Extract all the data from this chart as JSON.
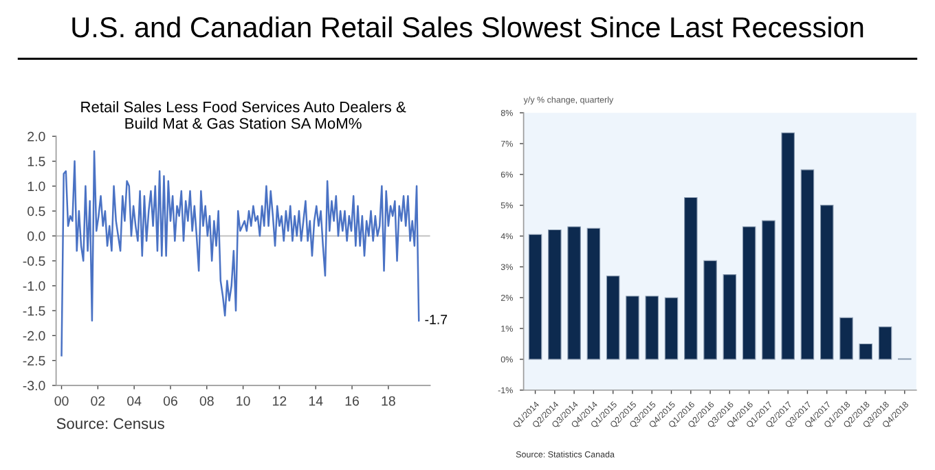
{
  "chart_data": [
    {
      "type": "line",
      "title": "U.S. and Canadian Retail Sales Slowest Since Last Recession",
      "subtitle": "Retail Sales Less Food Services Auto Dealers &\nBuild Mat & Gas Station SA MoM%",
      "x": [
        2000,
        2000.12,
        2000.24,
        2000.36,
        2000.48,
        2000.6,
        2000.72,
        2000.84,
        2000.96,
        2001.08,
        2001.2,
        2001.32,
        2001.44,
        2001.56,
        2001.68,
        2001.8,
        2001.92,
        2002.04,
        2002.16,
        2002.28,
        2002.4,
        2002.52,
        2002.64,
        2002.76,
        2002.88,
        2003,
        2003.12,
        2003.24,
        2003.36,
        2003.48,
        2003.6,
        2003.72,
        2003.84,
        2003.96,
        2004.08,
        2004.2,
        2004.32,
        2004.44,
        2004.56,
        2004.68,
        2004.8,
        2004.92,
        2005.04,
        2005.16,
        2005.28,
        2005.4,
        2005.52,
        2005.64,
        2005.76,
        2005.88,
        2006,
        2006.12,
        2006.24,
        2006.36,
        2006.48,
        2006.6,
        2006.72,
        2006.84,
        2006.96,
        2007.08,
        2007.2,
        2007.32,
        2007.44,
        2007.56,
        2007.68,
        2007.8,
        2007.92,
        2008.04,
        2008.16,
        2008.28,
        2008.4,
        2008.52,
        2008.64,
        2008.76,
        2008.88,
        2009,
        2009.12,
        2009.24,
        2009.36,
        2009.48,
        2009.6,
        2009.72,
        2009.84,
        2009.96,
        2010.08,
        2010.2,
        2010.32,
        2010.44,
        2010.56,
        2010.68,
        2010.8,
        2010.92,
        2011.04,
        2011.16,
        2011.28,
        2011.4,
        2011.52,
        2011.64,
        2011.76,
        2011.88,
        2012,
        2012.12,
        2012.24,
        2012.36,
        2012.48,
        2012.6,
        2012.72,
        2012.84,
        2012.96,
        2013.08,
        2013.2,
        2013.32,
        2013.44,
        2013.56,
        2013.68,
        2013.8,
        2013.92,
        2014.04,
        2014.16,
        2014.28,
        2014.4,
        2014.52,
        2014.64,
        2014.76,
        2014.88,
        2015,
        2015.12,
        2015.24,
        2015.36,
        2015.48,
        2015.6,
        2015.72,
        2015.84,
        2015.96,
        2016.08,
        2016.2,
        2016.32,
        2016.44,
        2016.56,
        2016.68,
        2016.8,
        2016.92,
        2017.04,
        2017.16,
        2017.28,
        2017.4,
        2017.52,
        2017.64,
        2017.76,
        2017.88,
        2018,
        2018.12,
        2018.24,
        2018.36,
        2018.48,
        2018.6,
        2018.72,
        2018.84,
        2018.96,
        2019.08,
        2019.2,
        2019.32,
        2019.44,
        2019.56,
        2019.68
      ],
      "series": [
        {
          "color": "#4a72c4",
          "values": [
            -2.4,
            1.25,
            1.3,
            0.2,
            0.4,
            0.3,
            1.5,
            -0.3,
            0.5,
            -0.2,
            -0.5,
            1.0,
            -0.3,
            0.7,
            -1.7,
            1.7,
            0.1,
            0.4,
            0.8,
            0.2,
            0.5,
            -0.2,
            0.2,
            -0.3,
            1.0,
            0.3,
            0.0,
            -0.3,
            0.8,
            0.3,
            1.1,
            1.0,
            0.0,
            0.6,
            0.2,
            -0.1,
            0.9,
            -0.4,
            0.8,
            -0.1,
            0.5,
            0.9,
            0.2,
            1.0,
            -0.3,
            1.3,
            -0.4,
            1.2,
            -0.4,
            1.1,
            0.3,
            0.8,
            -0.1,
            0.6,
            0.4,
            0.9,
            -0.1,
            0.7,
            0.3,
            0.9,
            0.1,
            0.6,
            0.0,
            -0.7,
            0.9,
            0.2,
            0.6,
            0.0,
            0.4,
            -0.5,
            0.3,
            -0.2,
            0.5,
            -0.9,
            -1.2,
            -1.6,
            -0.9,
            -1.3,
            -1.0,
            -0.3,
            -1.5,
            0.5,
            0.1,
            0.2,
            0.3,
            0.1,
            0.5,
            0.2,
            0.6,
            0.3,
            0.4,
            0.0,
            0.6,
            0.2,
            1.0,
            0.2,
            0.9,
            0.4,
            -0.2,
            0.6,
            0.2,
            0.4,
            -0.1,
            0.5,
            0.1,
            0.6,
            -0.1,
            0.4,
            0.0,
            0.5,
            -0.1,
            0.3,
            0.7,
            -0.1,
            0.3,
            -0.4,
            0.3,
            0.6,
            0.2,
            0.5,
            -0.2,
            -0.8,
            1.1,
            0.1,
            0.7,
            0.3,
            0.8,
            0.0,
            0.5,
            0.1,
            0.5,
            -0.1,
            0.4,
            0.1,
            0.8,
            -0.2,
            0.6,
            -0.2,
            0.4,
            -0.4,
            0.3,
            0.0,
            0.5,
            -0.1,
            0.4,
            0.0,
            0.2,
            1.0,
            -0.7,
            0.9,
            0.2,
            0.6,
            0.4,
            0.7,
            -0.5,
            0.6,
            0.3,
            0.8,
            0.2,
            0.8,
            -0.1,
            0.3,
            -0.2,
            1.0,
            -1.7
          ]
        }
      ],
      "xlim": [
        1999.7,
        2020.3
      ],
      "xticks": [
        {
          "value": 2000,
          "label": "00"
        },
        {
          "value": 2002,
          "label": "02"
        },
        {
          "value": 2004,
          "label": "04"
        },
        {
          "value": 2006,
          "label": "06"
        },
        {
          "value": 2008,
          "label": "08"
        },
        {
          "value": 2010,
          "label": "10"
        },
        {
          "value": 2012,
          "label": "12"
        },
        {
          "value": 2014,
          "label": "14"
        },
        {
          "value": 2016,
          "label": "16"
        },
        {
          "value": 2018,
          "label": "18"
        }
      ],
      "ylim": [
        -3.0,
        2.0
      ],
      "yticks": [
        {
          "value": -3,
          "label": "-3.0"
        },
        {
          "value": -2.5,
          "label": "-2.5"
        },
        {
          "value": -2,
          "label": "-2.0"
        },
        {
          "value": -1.5,
          "label": "-1.5"
        },
        {
          "value": -1,
          "label": "-1.0"
        },
        {
          "value": -0.5,
          "label": "-0.5"
        },
        {
          "value": 0,
          "label": "0.0"
        },
        {
          "value": 0.5,
          "label": "0.5"
        },
        {
          "value": 1,
          "label": "1.0"
        },
        {
          "value": 1.5,
          "label": "1.5"
        },
        {
          "value": 2,
          "label": "2.0"
        }
      ],
      "ref_lines": [
        {
          "axis": "y",
          "value": 0,
          "color": "#c8c8c8"
        }
      ],
      "annotations": [
        {
          "text": "-1.7",
          "x": 2019.68,
          "y": -1.7
        },
        "Source: Census"
      ]
    },
    {
      "type": "bar",
      "subtitle": "y/y % change, quarterly",
      "categories": [
        "Q1/2014",
        "Q2/2014",
        "Q3/2014",
        "Q4/2014",
        "Q1/2015",
        "Q2/2015",
        "Q3/2015",
        "Q4/2015",
        "Q1/2016",
        "Q2/2016",
        "Q3/2016",
        "Q4/2016",
        "Q1/2017",
        "Q2/2017",
        "Q3/2017",
        "Q4/2017",
        "Q1/2018",
        "Q2/2018",
        "Q3/2018",
        "Q4/2018"
      ],
      "series": [
        {
          "color": "#0d2a4f",
          "values": [
            4.05,
            4.2,
            4.3,
            4.25,
            2.7,
            2.05,
            2.05,
            2.0,
            5.25,
            3.2,
            2.75,
            4.3,
            4.5,
            7.35,
            6.15,
            5.0,
            1.35,
            0.5,
            1.05,
            0.02
          ]
        }
      ],
      "ylim": [
        -1,
        8
      ],
      "yticks": [
        {
          "value": -1,
          "label": "-1%"
        },
        {
          "value": 0,
          "label": "0%"
        },
        {
          "value": 1,
          "label": "1%"
        },
        {
          "value": 2,
          "label": "2%"
        },
        {
          "value": 3,
          "label": "3%"
        },
        {
          "value": 4,
          "label": "4%"
        },
        {
          "value": 5,
          "label": "5%"
        },
        {
          "value": 6,
          "label": "6%"
        },
        {
          "value": 7,
          "label": "7%"
        },
        {
          "value": 8,
          "label": "8%"
        }
      ],
      "annotations": [
        "Source: Statistics Canada"
      ]
    }
  ]
}
